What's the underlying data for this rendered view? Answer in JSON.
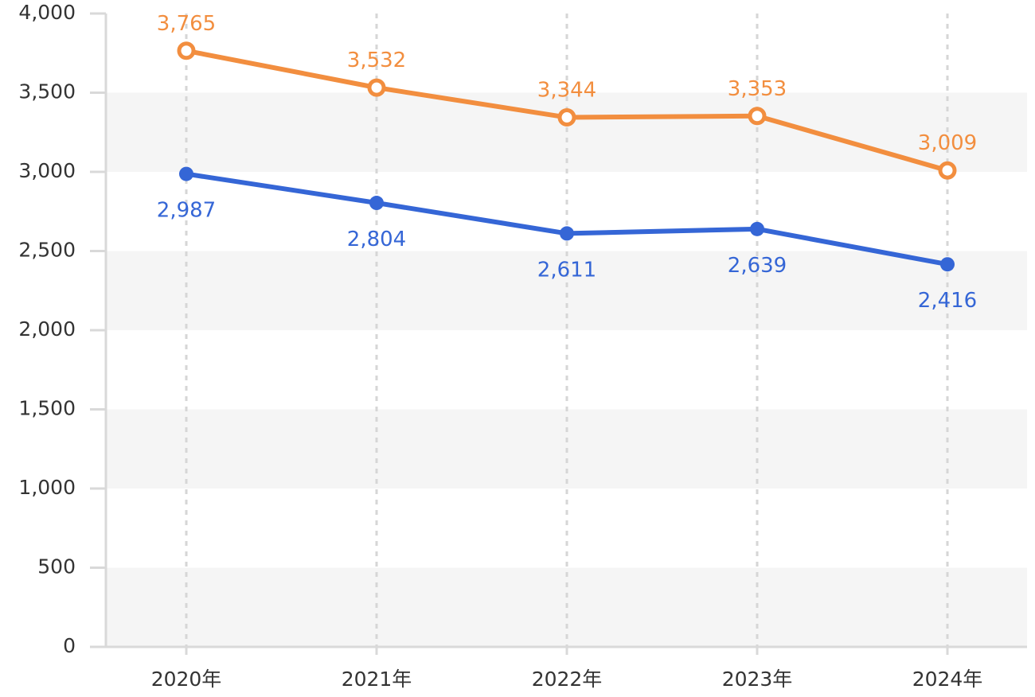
{
  "chart_data": {
    "type": "line",
    "categories": [
      "2020年",
      "2021年",
      "2022年",
      "2023年",
      "2024年"
    ],
    "series": [
      {
        "values": [
          3765,
          3532,
          3344,
          3353,
          3009
        ],
        "color": "#f28e3f",
        "marker": "hollow-circle",
        "value_labels": [
          "3,765",
          "3,532",
          "3,344",
          "3,353",
          "3,009"
        ],
        "label_position": "above"
      },
      {
        "values": [
          2987,
          2804,
          2611,
          2639,
          2416
        ],
        "color": "#3566d6",
        "marker": "filled-circle",
        "value_labels": [
          "2,987",
          "2,804",
          "2,611",
          "2,639",
          "2,416"
        ],
        "label_position": "below"
      }
    ],
    "yticks": [
      0,
      500,
      1000,
      1500,
      2000,
      2500,
      3000,
      3500,
      4000
    ],
    "ytick_labels": [
      "0",
      "500",
      "1,000",
      "1,500",
      "2,000",
      "2,500",
      "3,000",
      "3,500",
      "4,000"
    ],
    "ylim": [
      0,
      4000
    ],
    "title": "",
    "xlabel": "",
    "ylabel": "",
    "grid": "alternating horizontal bands, dashed vertical lines",
    "band_color": "#f5f5f5",
    "legend": "none"
  }
}
